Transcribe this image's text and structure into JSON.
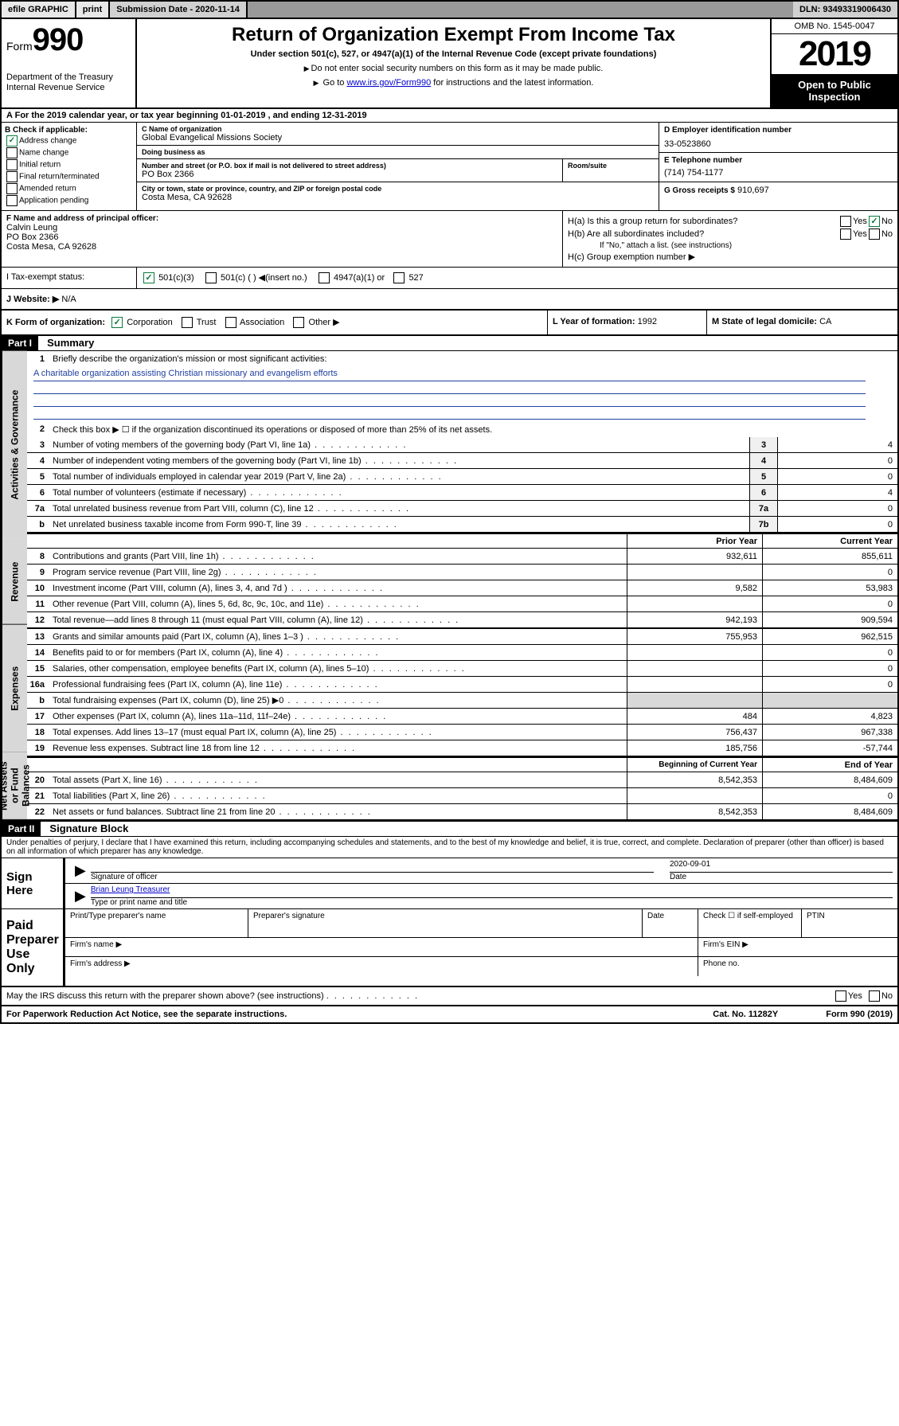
{
  "topbar": {
    "efile": "efile GRAPHIC",
    "print": "print",
    "subdate_lbl": "Submission Date - 2020-11-14",
    "dln": "DLN: 93493319006430"
  },
  "header": {
    "form_prefix": "Form",
    "form_no": "990",
    "dept": "Department of the Treasury\nInternal Revenue Service",
    "title": "Return of Organization Exempt From Income Tax",
    "sub": "Under section 501(c), 527, or 4947(a)(1) of the Internal Revenue Code (except private foundations)",
    "note1": "Do not enter social security numbers on this form as it may be made public.",
    "note2_pre": "Go to ",
    "note2_link": "www.irs.gov/Form990",
    "note2_post": " for instructions and the latest information.",
    "omb": "OMB No. 1545-0047",
    "year": "2019",
    "inspect": "Open to Public Inspection"
  },
  "row_a": "For the 2019 calendar year, or tax year beginning 01-01-2019   , and ending 12-31-2019",
  "box_b": {
    "title": "B Check if applicable:",
    "items": [
      "Address change",
      "Name change",
      "Initial return",
      "Final return/terminated",
      "Amended return",
      "Application pending"
    ],
    "checked_idx": 0
  },
  "box_c": {
    "name_lbl": "C Name of organization",
    "name": "Global Evangelical Missions Society",
    "dba_lbl": "Doing business as",
    "dba": "",
    "street_lbl": "Number and street (or P.O. box if mail is not delivered to street address)",
    "street": "PO Box 2366",
    "suite_lbl": "Room/suite",
    "city_lbl": "City or town, state or province, country, and ZIP or foreign postal code",
    "city": "Costa Mesa, CA  92628"
  },
  "box_d": {
    "lbl": "D Employer identification number",
    "val": "33-0523860"
  },
  "box_e": {
    "lbl": "E Telephone number",
    "val": "(714) 754-1177"
  },
  "box_g": {
    "lbl": "G Gross receipts $",
    "val": "910,697"
  },
  "box_f": {
    "lbl": "F  Name and address of principal officer:",
    "name": "Calvin Leung",
    "addr1": "PO Box 2366",
    "addr2": "Costa Mesa, CA  92628"
  },
  "box_h": {
    "a_lbl": "H(a)  Is this a group return for subordinates?",
    "b_lbl": "H(b)  Are all subordinates included?",
    "b_note": "If \"No,\" attach a list. (see instructions)",
    "c_lbl": "H(c)  Group exemption number ▶",
    "a_no_checked": true
  },
  "tax_status": {
    "lbl": "Tax-exempt status:",
    "opts": [
      "501(c)(3)",
      "501(c) (  ) ◀(insert no.)",
      "4947(a)(1) or",
      "527"
    ],
    "checked_idx": 0
  },
  "row_j": {
    "lbl": "J  Website: ▶",
    "val": "N/A"
  },
  "row_k": {
    "lbl": "K Form of organization:",
    "opts": [
      "Corporation",
      "Trust",
      "Association",
      "Other ▶"
    ],
    "checked_idx": 0,
    "l_lbl": "L Year of formation:",
    "l_val": "1992",
    "m_lbl": "M State of legal domicile:",
    "m_val": "CA"
  },
  "part1": {
    "hdr": "Part I",
    "title": "Summary",
    "q1_lbl": "Briefly describe the organization's mission or most significant activities:",
    "q1_val": "A charitable organization assisting Christian missionary and evangelism efforts",
    "q2": "Check this box ▶ ☐  if the organization discontinued its operations or disposed of more than 25% of its net assets.",
    "lines_gov": [
      {
        "n": "3",
        "t": "Number of voting members of the governing body (Part VI, line 1a)",
        "b": "3",
        "v": "4"
      },
      {
        "n": "4",
        "t": "Number of independent voting members of the governing body (Part VI, line 1b)",
        "b": "4",
        "v": "0"
      },
      {
        "n": "5",
        "t": "Total number of individuals employed in calendar year 2019 (Part V, line 2a)",
        "b": "5",
        "v": "0"
      },
      {
        "n": "6",
        "t": "Total number of volunteers (estimate if necessary)",
        "b": "6",
        "v": "4"
      },
      {
        "n": "7a",
        "t": "Total unrelated business revenue from Part VIII, column (C), line 12",
        "b": "7a",
        "v": "0"
      },
      {
        "n": "b",
        "t": "Net unrelated business taxable income from Form 990-T, line 39",
        "b": "7b",
        "v": "0"
      }
    ],
    "col_prior": "Prior Year",
    "col_curr": "Current Year",
    "lines_rev": [
      {
        "n": "8",
        "t": "Contributions and grants (Part VIII, line 1h)",
        "p": "932,611",
        "c": "855,611"
      },
      {
        "n": "9",
        "t": "Program service revenue (Part VIII, line 2g)",
        "p": "",
        "c": "0"
      },
      {
        "n": "10",
        "t": "Investment income (Part VIII, column (A), lines 3, 4, and 7d )",
        "p": "9,582",
        "c": "53,983"
      },
      {
        "n": "11",
        "t": "Other revenue (Part VIII, column (A), lines 5, 6d, 8c, 9c, 10c, and 11e)",
        "p": "",
        "c": "0"
      },
      {
        "n": "12",
        "t": "Total revenue—add lines 8 through 11 (must equal Part VIII, column (A), line 12)",
        "p": "942,193",
        "c": "909,594"
      }
    ],
    "lines_exp": [
      {
        "n": "13",
        "t": "Grants and similar amounts paid (Part IX, column (A), lines 1–3 )",
        "p": "755,953",
        "c": "962,515"
      },
      {
        "n": "14",
        "t": "Benefits paid to or for members (Part IX, column (A), line 4)",
        "p": "",
        "c": "0"
      },
      {
        "n": "15",
        "t": "Salaries, other compensation, employee benefits (Part IX, column (A), lines 5–10)",
        "p": "",
        "c": "0"
      },
      {
        "n": "16a",
        "t": "Professional fundraising fees (Part IX, column (A), line 11e)",
        "p": "",
        "c": "0"
      },
      {
        "n": "b",
        "t": "Total fundraising expenses (Part IX, column (D), line 25) ▶0",
        "p": "shade",
        "c": "shade"
      },
      {
        "n": "17",
        "t": "Other expenses (Part IX, column (A), lines 11a–11d, 11f–24e)",
        "p": "484",
        "c": "4,823"
      },
      {
        "n": "18",
        "t": "Total expenses. Add lines 13–17 (must equal Part IX, column (A), line 25)",
        "p": "756,437",
        "c": "967,338"
      },
      {
        "n": "19",
        "t": "Revenue less expenses. Subtract line 18 from line 12",
        "p": "185,756",
        "c": "-57,744"
      }
    ],
    "col_beg": "Beginning of Current Year",
    "col_end": "End of Year",
    "lines_net": [
      {
        "n": "20",
        "t": "Total assets (Part X, line 16)",
        "p": "8,542,353",
        "c": "8,484,609"
      },
      {
        "n": "21",
        "t": "Total liabilities (Part X, line 26)",
        "p": "",
        "c": "0"
      },
      {
        "n": "22",
        "t": "Net assets or fund balances. Subtract line 21 from line 20",
        "p": "8,542,353",
        "c": "8,484,609"
      }
    ],
    "vtabs": [
      "Activities & Governance",
      "Revenue",
      "Expenses",
      "Net Assets or Fund Balances"
    ]
  },
  "part2": {
    "hdr": "Part II",
    "title": "Signature Block",
    "perjury": "Under penalties of perjury, I declare that I have examined this return, including accompanying schedules and statements, and to the best of my knowledge and belief, it is true, correct, and complete. Declaration of preparer (other than officer) is based on all information of which preparer has any knowledge.",
    "sign_here": "Sign Here",
    "sig_officer_lbl": "Signature of officer",
    "sig_date": "2020-09-01",
    "sig_date_lbl": "Date",
    "sig_name": "Brian Leung  Treasurer",
    "sig_name_lbl": "Type or print name and title",
    "paid": "Paid Preparer Use Only",
    "prep_name_lbl": "Print/Type preparer's name",
    "prep_sig_lbl": "Preparer's signature",
    "date_lbl": "Date",
    "check_lbl": "Check ☐ if self-employed",
    "ptin_lbl": "PTIN",
    "firm_name_lbl": "Firm's name  ▶",
    "firm_ein_lbl": "Firm's EIN ▶",
    "firm_addr_lbl": "Firm's address ▶",
    "phone_lbl": "Phone no."
  },
  "footer": {
    "discuss": "May the IRS discuss this return with the preparer shown above? (see instructions)",
    "paperwork": "For Paperwork Reduction Act Notice, see the separate instructions.",
    "cat": "Cat. No. 11282Y",
    "formno": "Form 990 (2019)"
  },
  "colors": {
    "link": "#0000cc",
    "mission_line": "#2040a0",
    "check_green": "#0a7a3a",
    "shade": "#d8d8d8"
  }
}
